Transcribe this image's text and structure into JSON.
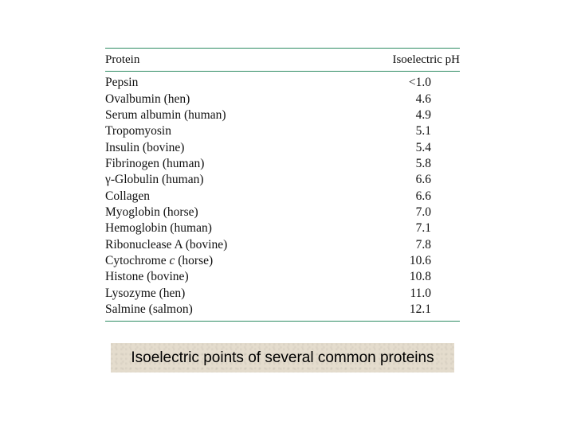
{
  "table": {
    "header": {
      "protein": "Protein",
      "ph": "Isoelectric pH"
    },
    "rows": [
      {
        "pre": "Pepsin",
        "italic": "",
        "post": "",
        "ph": "<1.0"
      },
      {
        "pre": "Ovalbumin (hen)",
        "italic": "",
        "post": "",
        "ph": "4.6"
      },
      {
        "pre": "Serum albumin (human)",
        "italic": "",
        "post": "",
        "ph": "4.9"
      },
      {
        "pre": "Tropomyosin",
        "italic": "",
        "post": "",
        "ph": "5.1"
      },
      {
        "pre": "Insulin (bovine)",
        "italic": "",
        "post": "",
        "ph": "5.4"
      },
      {
        "pre": "Fibrinogen (human)",
        "italic": "",
        "post": "",
        "ph": "5.8"
      },
      {
        "pre": "γ-Globulin (human)",
        "italic": "",
        "post": "",
        "ph": "6.6"
      },
      {
        "pre": "Collagen",
        "italic": "",
        "post": "",
        "ph": "6.6"
      },
      {
        "pre": "Myoglobin (horse)",
        "italic": "",
        "post": "",
        "ph": "7.0"
      },
      {
        "pre": "Hemoglobin (human)",
        "italic": "",
        "post": "",
        "ph": "7.1"
      },
      {
        "pre": "Ribonuclease A (bovine)",
        "italic": "",
        "post": "",
        "ph": "7.8"
      },
      {
        "pre": "Cytochrome ",
        "italic": "c",
        "post": " (horse)",
        "ph": "10.6"
      },
      {
        "pre": "Histone (bovine)",
        "italic": "",
        "post": "",
        "ph": "10.8"
      },
      {
        "pre": "Lysozyme (hen)",
        "italic": "",
        "post": "",
        "ph": "11.0"
      },
      {
        "pre": "Salmine (salmon)",
        "italic": "",
        "post": "",
        "ph": "12.1"
      }
    ]
  },
  "caption": "Isoelectric points of several common proteins",
  "colors": {
    "rule": "#2e8b63",
    "caption_bg": "#e4dccd"
  }
}
